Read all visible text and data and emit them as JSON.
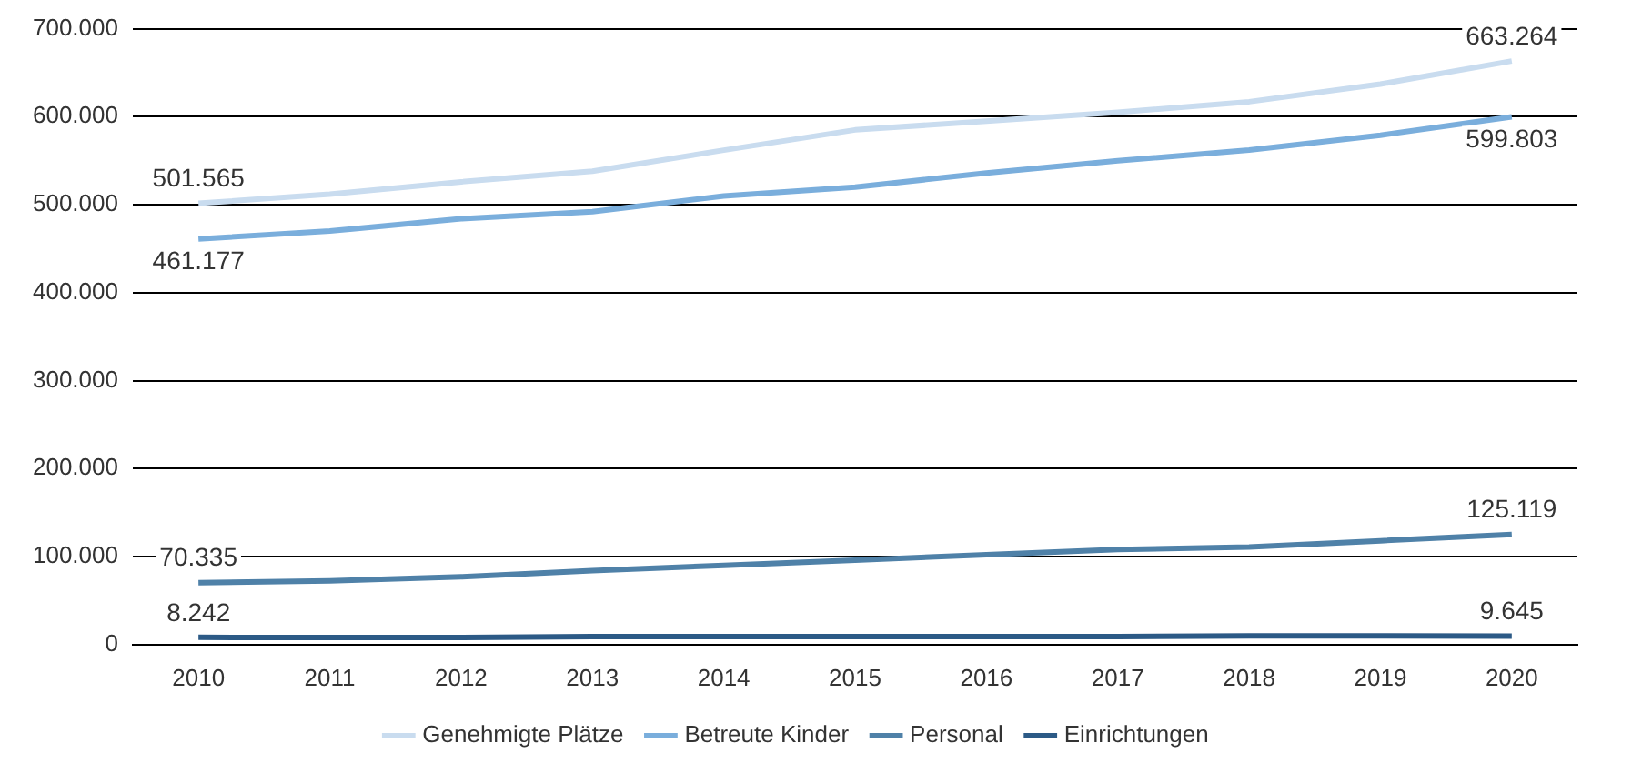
{
  "chart_data": {
    "type": "line",
    "categories": [
      "2010",
      "2011",
      "2012",
      "2013",
      "2014",
      "2015",
      "2016",
      "2017",
      "2018",
      "2019",
      "2020"
    ],
    "series": [
      {
        "name": "Genehmigte Plätze",
        "color": "#c9dcef",
        "values": [
          501565,
          512000,
          526000,
          538000,
          562000,
          585000,
          595000,
          605000,
          617000,
          637000,
          663264
        ]
      },
      {
        "name": "Betreute Kinder",
        "color": "#7aaedc",
        "values": [
          461177,
          470000,
          484000,
          492000,
          510000,
          520000,
          536000,
          550000,
          562000,
          579000,
          599803
        ]
      },
      {
        "name": "Personal",
        "color": "#4f81a8",
        "values": [
          70335,
          72500,
          77000,
          84000,
          90000,
          96000,
          102000,
          108000,
          111000,
          118000,
          125119
        ]
      },
      {
        "name": "Einrichtungen",
        "color": "#2c5a86",
        "values": [
          8242,
          8000,
          8000,
          9000,
          9000,
          9000,
          9000,
          9000,
          10000,
          10000,
          9645
        ]
      }
    ],
    "ylim": [
      0,
      700000
    ],
    "yticks": [
      0,
      {
        "value": 100000,
        "label": "100.000"
      },
      {
        "value": 200000,
        "label": "200.000"
      },
      {
        "value": 300000,
        "label": "300.000"
      },
      {
        "value": 400000,
        "label": "400.000"
      },
      {
        "value": 500000,
        "label": "500.000"
      },
      {
        "value": 600000,
        "label": "600.000"
      },
      {
        "value": 700000,
        "label": "700.000"
      }
    ],
    "grid": "y",
    "legend": "bottom",
    "marker": "none",
    "line_style": "solid",
    "annotations": [
      {
        "text": "501.565",
        "x": "2010",
        "y": 501565
      },
      {
        "text": "461.177",
        "x": "2010",
        "y": 461177
      },
      {
        "text": "70.335",
        "x": "2010",
        "y": 70335
      },
      {
        "text": "8.242",
        "x": "2010",
        "y": 8242
      },
      {
        "text": "663.264",
        "x": "2020",
        "y": 663264
      },
      {
        "text": "599.803",
        "x": "2020",
        "y": 599803
      },
      {
        "text": "125.119",
        "x": "2020",
        "y": 125119
      },
      {
        "text": "9.645",
        "x": "2020",
        "y": 9645
      }
    ]
  }
}
